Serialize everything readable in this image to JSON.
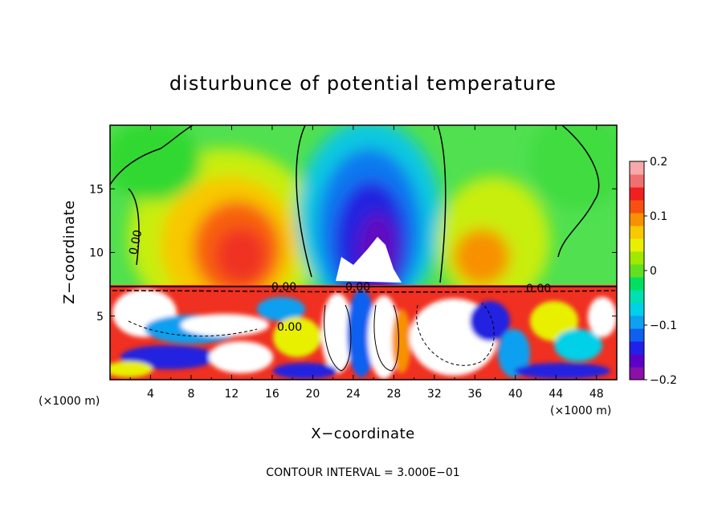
{
  "chart_data": {
    "type": "heatmap",
    "title": "disturbunce of potential temperature",
    "xlabel": "X−coordinate",
    "ylabel": "Z−coordinate",
    "x_ticks": [
      "4",
      "8",
      "12",
      "16",
      "20",
      "24",
      "28",
      "32",
      "36",
      "40",
      "44",
      "48"
    ],
    "y_ticks": [
      "5",
      "10",
      "15"
    ],
    "x_unit_left": "(×1000 m)",
    "x_unit_right": "(×1000 m)",
    "xlim": [
      0,
      50
    ],
    "ylim": [
      0,
      20
    ],
    "colorbar": {
      "ticks": [
        "0.2",
        "0.1",
        "0",
        "−0.1",
        "−0.2"
      ],
      "range": [
        -0.2,
        0.2
      ],
      "colors": [
        "#8a10a8",
        "#5a00c8",
        "#2020e8",
        "#1060f0",
        "#10a0f0",
        "#00d0e8",
        "#00e0b0",
        "#00e060",
        "#60e020",
        "#a0e800",
        "#e8f000",
        "#f8c800",
        "#f89000",
        "#f85010",
        "#f02020",
        "#f07070",
        "#f8a8a8"
      ]
    },
    "contour_labels": [
      "0.00",
      "0.00",
      "0.00",
      "0.00",
      "0.00"
    ],
    "contour_interval": "CONTOUR INTERVAL = 3.000E−01"
  }
}
